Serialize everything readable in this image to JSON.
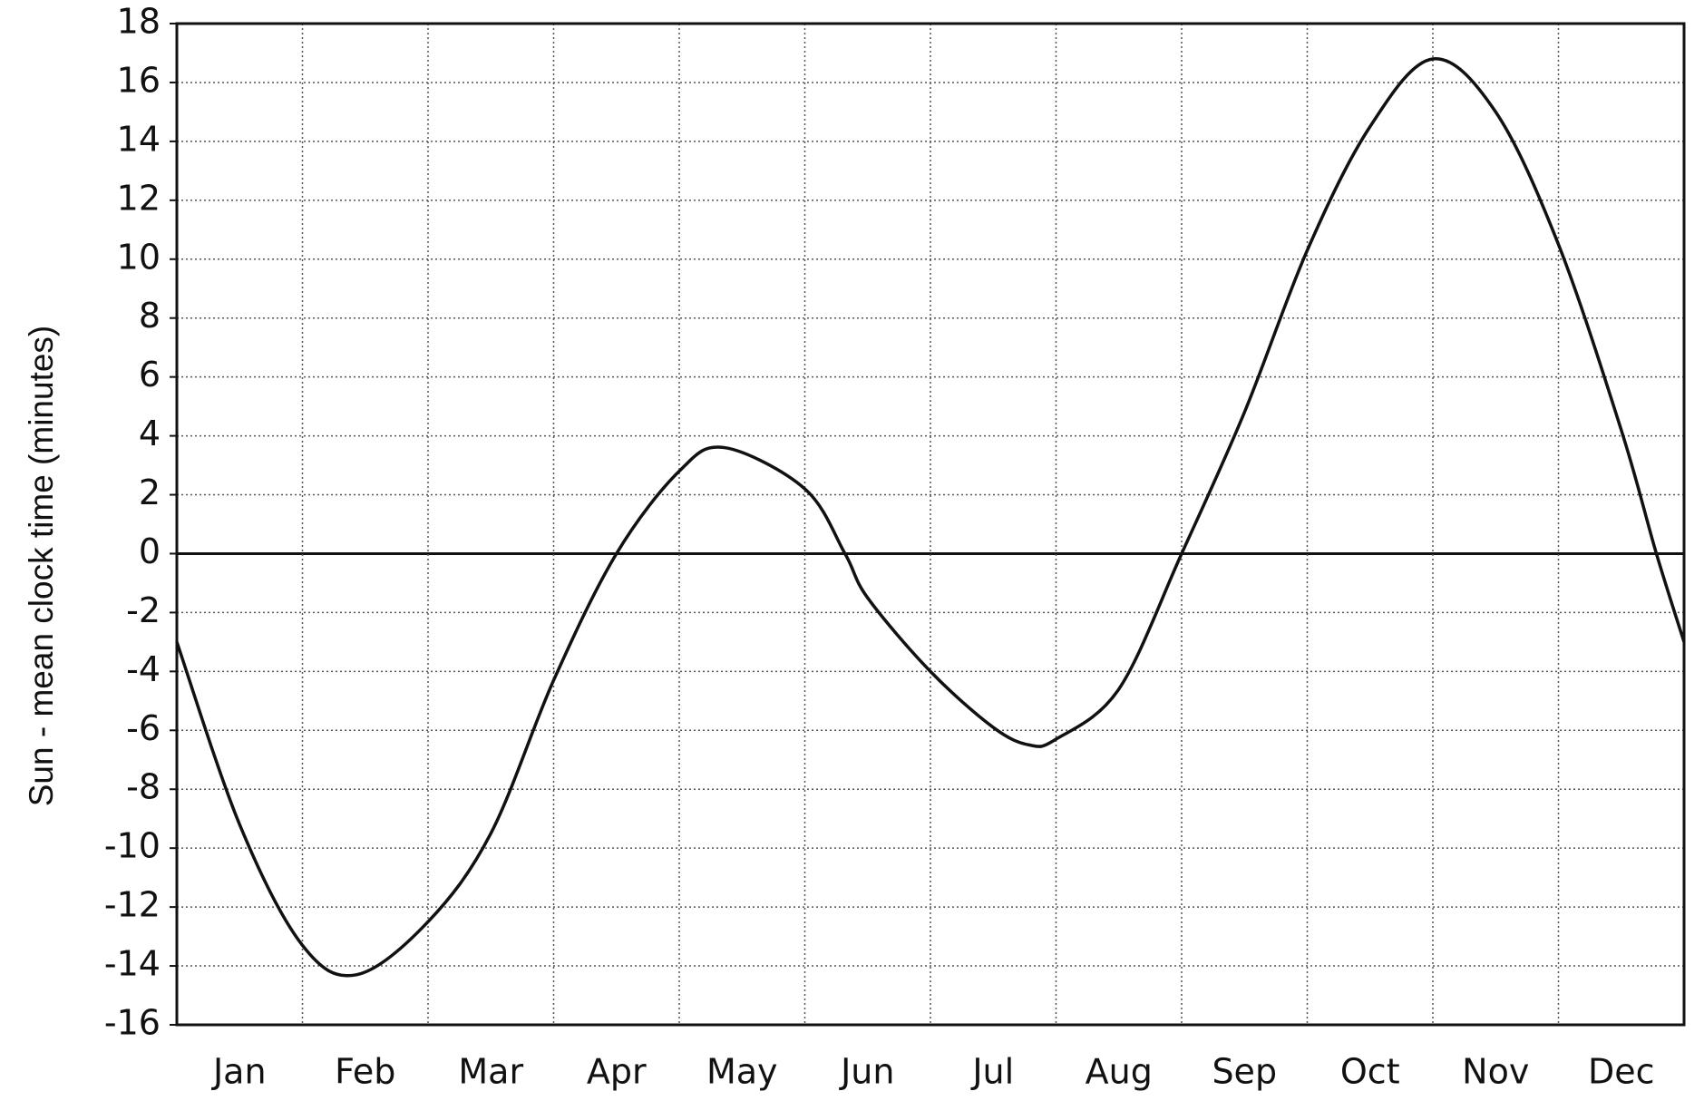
{
  "chart_data": {
    "type": "line",
    "ylabel": "Sun - mean clock time (minutes)",
    "xlim": [
      0,
      12
    ],
    "xticks": [
      {
        "value": 0.5,
        "label": "Jan"
      },
      {
        "value": 1.5,
        "label": "Feb"
      },
      {
        "value": 2.5,
        "label": "Mar"
      },
      {
        "value": 3.5,
        "label": "Apr"
      },
      {
        "value": 4.5,
        "label": "May"
      },
      {
        "value": 5.5,
        "label": "Jun"
      },
      {
        "value": 6.5,
        "label": "Jul"
      },
      {
        "value": 7.5,
        "label": "Aug"
      },
      {
        "value": 8.5,
        "label": "Sep"
      },
      {
        "value": 9.5,
        "label": "Oct"
      },
      {
        "value": 10.5,
        "label": "Nov"
      },
      {
        "value": 11.5,
        "label": "Dec"
      }
    ],
    "ylim": [
      -16,
      18
    ],
    "yticks": [
      -16,
      -14,
      -12,
      -10,
      -8,
      -6,
      -4,
      -2,
      0,
      2,
      4,
      6,
      8,
      10,
      12,
      14,
      16,
      18
    ],
    "grid": true,
    "series": [
      {
        "color": "#111111",
        "x": [
          0,
          0.5,
          1,
          1.43,
          2,
          2.5,
          3,
          3.5,
          4,
          4.36,
          5,
          5.32,
          5.5,
          6,
          6.5,
          6.79,
          7,
          7.5,
          8,
          8.5,
          9,
          9.5,
          10,
          10.5,
          11,
          11.5,
          11.78,
          12
        ],
        "values": [
          -3,
          -9.2,
          -13.3,
          -14.3,
          -12.5,
          -9.5,
          -4.3,
          0,
          2.8,
          3.6,
          2.2,
          0,
          -1.5,
          -4,
          -5.9,
          -6.5,
          -6.3,
          -4.6,
          0,
          4.8,
          10.3,
          14.5,
          16.8,
          15,
          10.5,
          4.2,
          0,
          -3
        ]
      }
    ]
  }
}
